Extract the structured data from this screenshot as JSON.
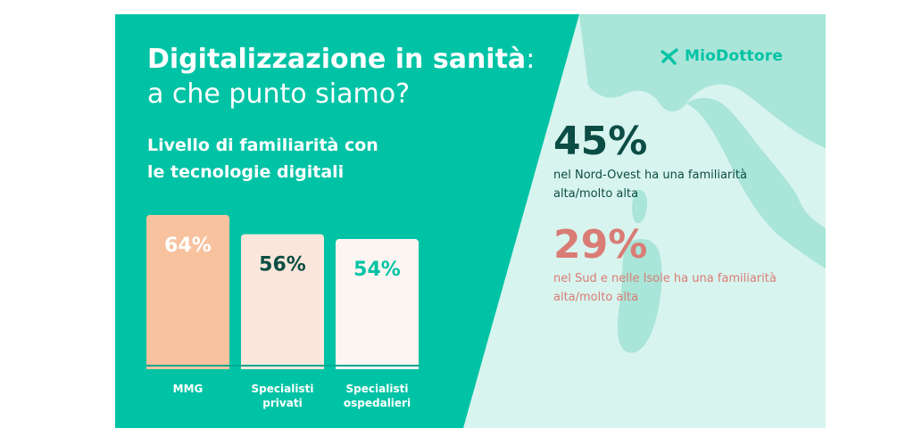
{
  "title": {
    "bold": "Digitalizzazione in sanità",
    "colon": ":",
    "line2": "a che punto siamo?"
  },
  "subtitle": {
    "line1": "Livello di familiarità con",
    "line2": "le tecnologie digitali"
  },
  "brand": {
    "name": "MioDottore",
    "color": "#00c3a5"
  },
  "chart_data": {
    "type": "bar",
    "title": "Livello di familiarità con le tecnologie digitali",
    "categories": [
      "MMG",
      "Specialisti privati",
      "Specialisti ospedalieri"
    ],
    "category_lines": [
      [
        "MMG"
      ],
      [
        "Specialisti",
        "privati"
      ],
      [
        "Specialisti",
        "ospedalieri"
      ]
    ],
    "values": [
      64,
      56,
      54
    ],
    "value_labels": [
      "64%",
      "56%",
      "54%"
    ],
    "bar_colors": [
      "#f8c29f",
      "#fae6da",
      "#fdf5f1"
    ],
    "label_colors": [
      "#ffffff",
      "#0b4d44",
      "#00c3a5"
    ],
    "ylim": [
      0,
      64
    ],
    "grid": false
  },
  "stats": [
    {
      "value": "45%",
      "line1": "nel Nord-Ovest ha una familiarità",
      "line2": "alta/molto alta",
      "color": "#0b4d44"
    },
    {
      "value": "29%",
      "line1": "nel Sud e nelle Isole ha una familiarità",
      "line2": "alta/molto alta",
      "color": "#d97c75"
    }
  ],
  "colors": {
    "background": "#00c3a5",
    "map_panel": "#d8f4ee",
    "map_land": "#a9e5d8"
  }
}
